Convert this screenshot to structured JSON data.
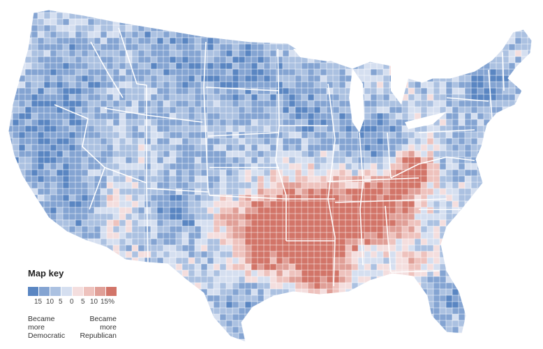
{
  "map_key": {
    "title": "Map key",
    "scale_colors": [
      "#5a86c2",
      "#84a4d2",
      "#abc1e1",
      "#d5dff0",
      "#f4dede",
      "#eec2bd",
      "#e09f97",
      "#d27569"
    ],
    "tick_labels": [
      "15",
      "10",
      "5",
      "0",
      "5",
      "10",
      "15%"
    ],
    "left_label": [
      "Became",
      "more",
      "Democratic"
    ],
    "right_label": [
      "Became",
      "more",
      "Republican"
    ]
  },
  "regions": {
    "red_core": "Appalachia, Tennessee, Arkansas, northern Louisiana, eastern Oklahoma",
    "light_red": "Southern Arizona, Gulf Coast, west Texas",
    "blue": "West Coast, Mountain West, Upper Midwest, Northeast, Florida peninsula, south Texas"
  }
}
